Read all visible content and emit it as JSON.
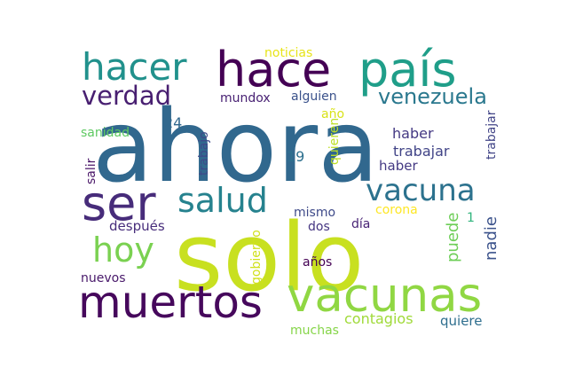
{
  "words": [
    {
      "text": "ahora",
      "color": "#31688e"
    },
    {
      "text": "solo",
      "color": "#c8e020"
    },
    {
      "text": "muertos",
      "color": "#46085c"
    },
    {
      "text": "vacunas",
      "color": "#90d743"
    },
    {
      "text": "hace",
      "color": "#440154"
    },
    {
      "text": "país",
      "color": "#1f9e89"
    },
    {
      "text": "hacer",
      "color": "#21918c"
    },
    {
      "text": "ser",
      "color": "#472c7a"
    },
    {
      "text": "salud",
      "color": "#26828e"
    },
    {
      "text": "vacuna",
      "color": "#2c728e"
    },
    {
      "text": "hoy",
      "color": "#7ad151"
    },
    {
      "text": "verdad",
      "color": "#481f71"
    },
    {
      "text": "venezuela",
      "color": "#2a788e"
    },
    {
      "text": "noticias",
      "color": "#e7e419"
    },
    {
      "text": "mundox",
      "color": "#482173"
    },
    {
      "text": "alguien",
      "color": "#3b528b"
    },
    {
      "text": "año",
      "color": "#d8e219"
    },
    {
      "text": "24",
      "color": "#31688e"
    },
    {
      "text": "sanidad",
      "color": "#5ec962"
    },
    {
      "text": "trabajo",
      "color": "#3e4989"
    },
    {
      "text": "quieren",
      "color": "#bddf26"
    },
    {
      "text": "trabajar",
      "color": "#414487"
    },
    {
      "text": "haber",
      "color": "#443983"
    },
    {
      "text": "tan",
      "color": "#35b779"
    },
    {
      "text": "parte",
      "color": "#38598c"
    },
    {
      "text": "19",
      "color": "#2d708e"
    },
    {
      "text": "salir",
      "color": "#481467"
    },
    {
      "text": "mismo",
      "color": "#3e4a89"
    },
    {
      "text": "corona",
      "color": "#fde725"
    },
    {
      "text": "después",
      "color": "#472d7b"
    },
    {
      "text": "día",
      "color": "#482475"
    },
    {
      "text": "dos",
      "color": "#453581"
    },
    {
      "text": "1",
      "color": "#2fb47c"
    },
    {
      "text": "puede",
      "color": "#6ece58"
    },
    {
      "text": "nadie",
      "color": "#3b528b"
    },
    {
      "text": "gobierno",
      "color": "#d0e11c"
    },
    {
      "text": "años",
      "color": "#440154"
    },
    {
      "text": "nuevos",
      "color": "#48186a"
    },
    {
      "text": "contagios",
      "color": "#a0da39"
    },
    {
      "text": "muchas",
      "color": "#86d549"
    },
    {
      "text": "quiere",
      "color": "#2e6e8e"
    }
  ]
}
